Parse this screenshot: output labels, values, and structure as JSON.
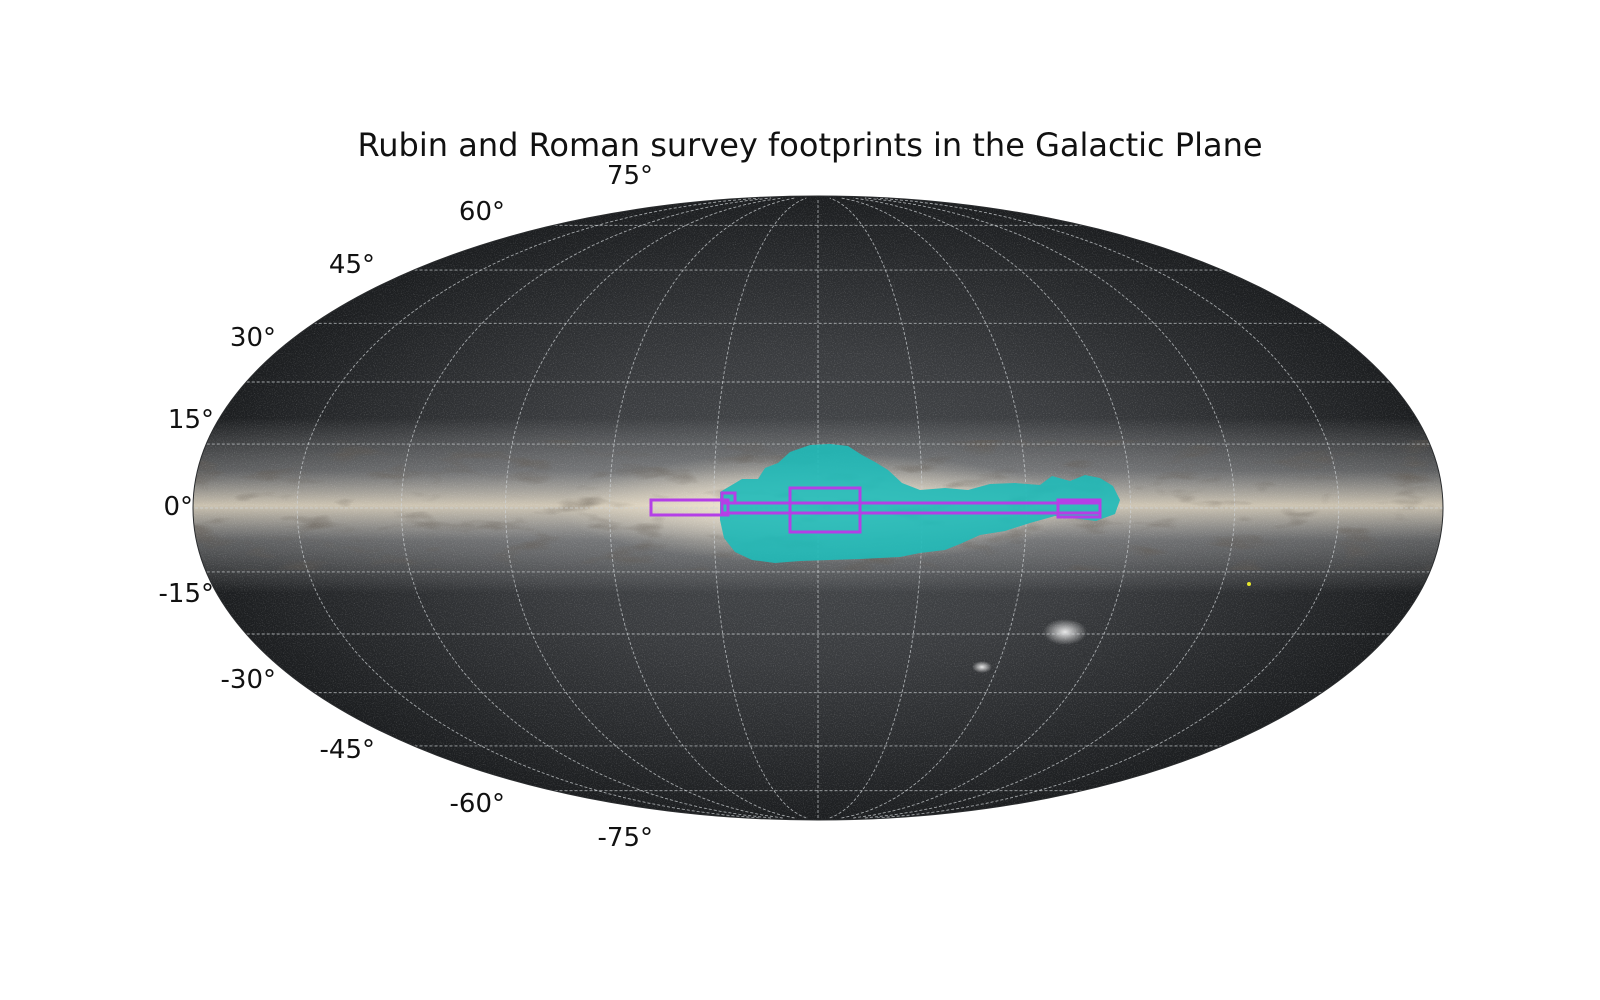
{
  "figure": {
    "title": "Rubin and Roman survey footprints in the Galactic Plane"
  },
  "map": {
    "projection": "mollweide",
    "coordinate_frame": "galactic",
    "background": "sky-map-milky-way",
    "graticule": {
      "latitude_step_deg": 15,
      "longitude_step_deg": 30,
      "visible": true
    },
    "latitude_tick_labels": [
      "75°",
      "60°",
      "45°",
      "30°",
      "15°",
      "0°",
      "-15°",
      "-30°",
      "-45°",
      "-60°",
      "-75°"
    ],
    "colors": {
      "sky_dark": "#1a1c1e",
      "galactic_band": "#cfc6b6",
      "rubin_footprint": "#1fbab8",
      "roman_footprint": "#b43fe6",
      "graticule": "#cfd3d6",
      "marker": "#e6e62e"
    },
    "layers": [
      {
        "kind": "rubin-footprint-region",
        "color": "#1fbab8"
      },
      {
        "kind": "roman-footprint-outline",
        "color": "#b43fe6"
      }
    ],
    "features": [
      "large-magellanic-cloud",
      "small-magellanic-cloud",
      "yellow-point-marker"
    ]
  }
}
